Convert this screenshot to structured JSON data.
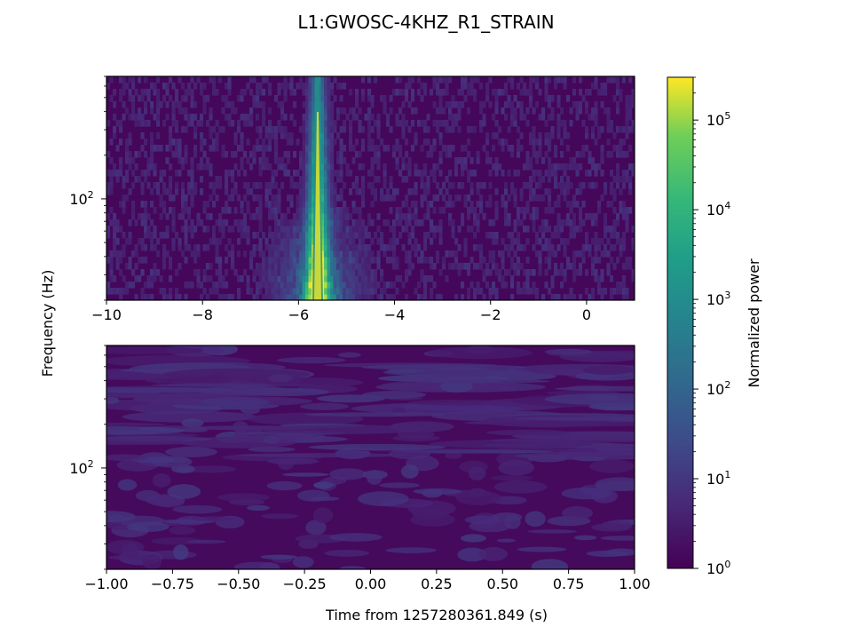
{
  "chart_data": {
    "type": "heatmap",
    "title": "L1:GWOSC-4KHZ_R1_STRAIN",
    "ylabel": "Frequency (Hz)",
    "colorbar": {
      "label": "Normalized power",
      "scale": "log",
      "range": [
        1,
        300000
      ],
      "colormap": "viridis",
      "ticks": [
        {
          "value": 1,
          "base": "10",
          "exp": "0"
        },
        {
          "value": 10,
          "base": "10",
          "exp": "1"
        },
        {
          "value": 100,
          "base": "10",
          "exp": "2"
        },
        {
          "value": 1000,
          "base": "10",
          "exp": "3"
        },
        {
          "value": 10000,
          "base": "10",
          "exp": "4"
        },
        {
          "value": 100000,
          "base": "10",
          "exp": "5"
        }
      ]
    },
    "panels": [
      {
        "name": "top-spectrogram",
        "xlim": [
          -10,
          1
        ],
        "yscale": "log",
        "ylim": [
          20,
          700
        ],
        "xticks": [
          {
            "value": -10,
            "label": "−10"
          },
          {
            "value": -8,
            "label": "−8"
          },
          {
            "value": -6,
            "label": "−6"
          },
          {
            "value": -4,
            "label": "−4"
          },
          {
            "value": -2,
            "label": "−2"
          },
          {
            "value": 0,
            "label": "0"
          }
        ],
        "yticks": [
          {
            "value": 100,
            "base": "10",
            "exp": "2"
          }
        ],
        "signal": {
          "t_center": -5.6,
          "peak_log10_power": 5.3
        }
      },
      {
        "name": "bottom-spectrogram",
        "xlim": [
          -1,
          1
        ],
        "xlabel": "Time from 1257280361.849 (s)",
        "yscale": "log",
        "ylim": [
          20,
          700
        ],
        "xticks": [
          {
            "value": -1.0,
            "label": "−1.00"
          },
          {
            "value": -0.75,
            "label": "−0.75"
          },
          {
            "value": -0.5,
            "label": "−0.50"
          },
          {
            "value": -0.25,
            "label": "−0.25"
          },
          {
            "value": 0.0,
            "label": "0.00"
          },
          {
            "value": 0.25,
            "label": "0.25"
          },
          {
            "value": 0.5,
            "label": "0.50"
          },
          {
            "value": 0.75,
            "label": "0.75"
          },
          {
            "value": 1.0,
            "label": "1.00"
          }
        ],
        "yticks": [
          {
            "value": 100,
            "base": "10",
            "exp": "2"
          }
        ]
      }
    ]
  },
  "colors": {
    "viridis_low": "#440154",
    "viridis_mid": "#21918c",
    "viridis_high": "#fde725"
  }
}
